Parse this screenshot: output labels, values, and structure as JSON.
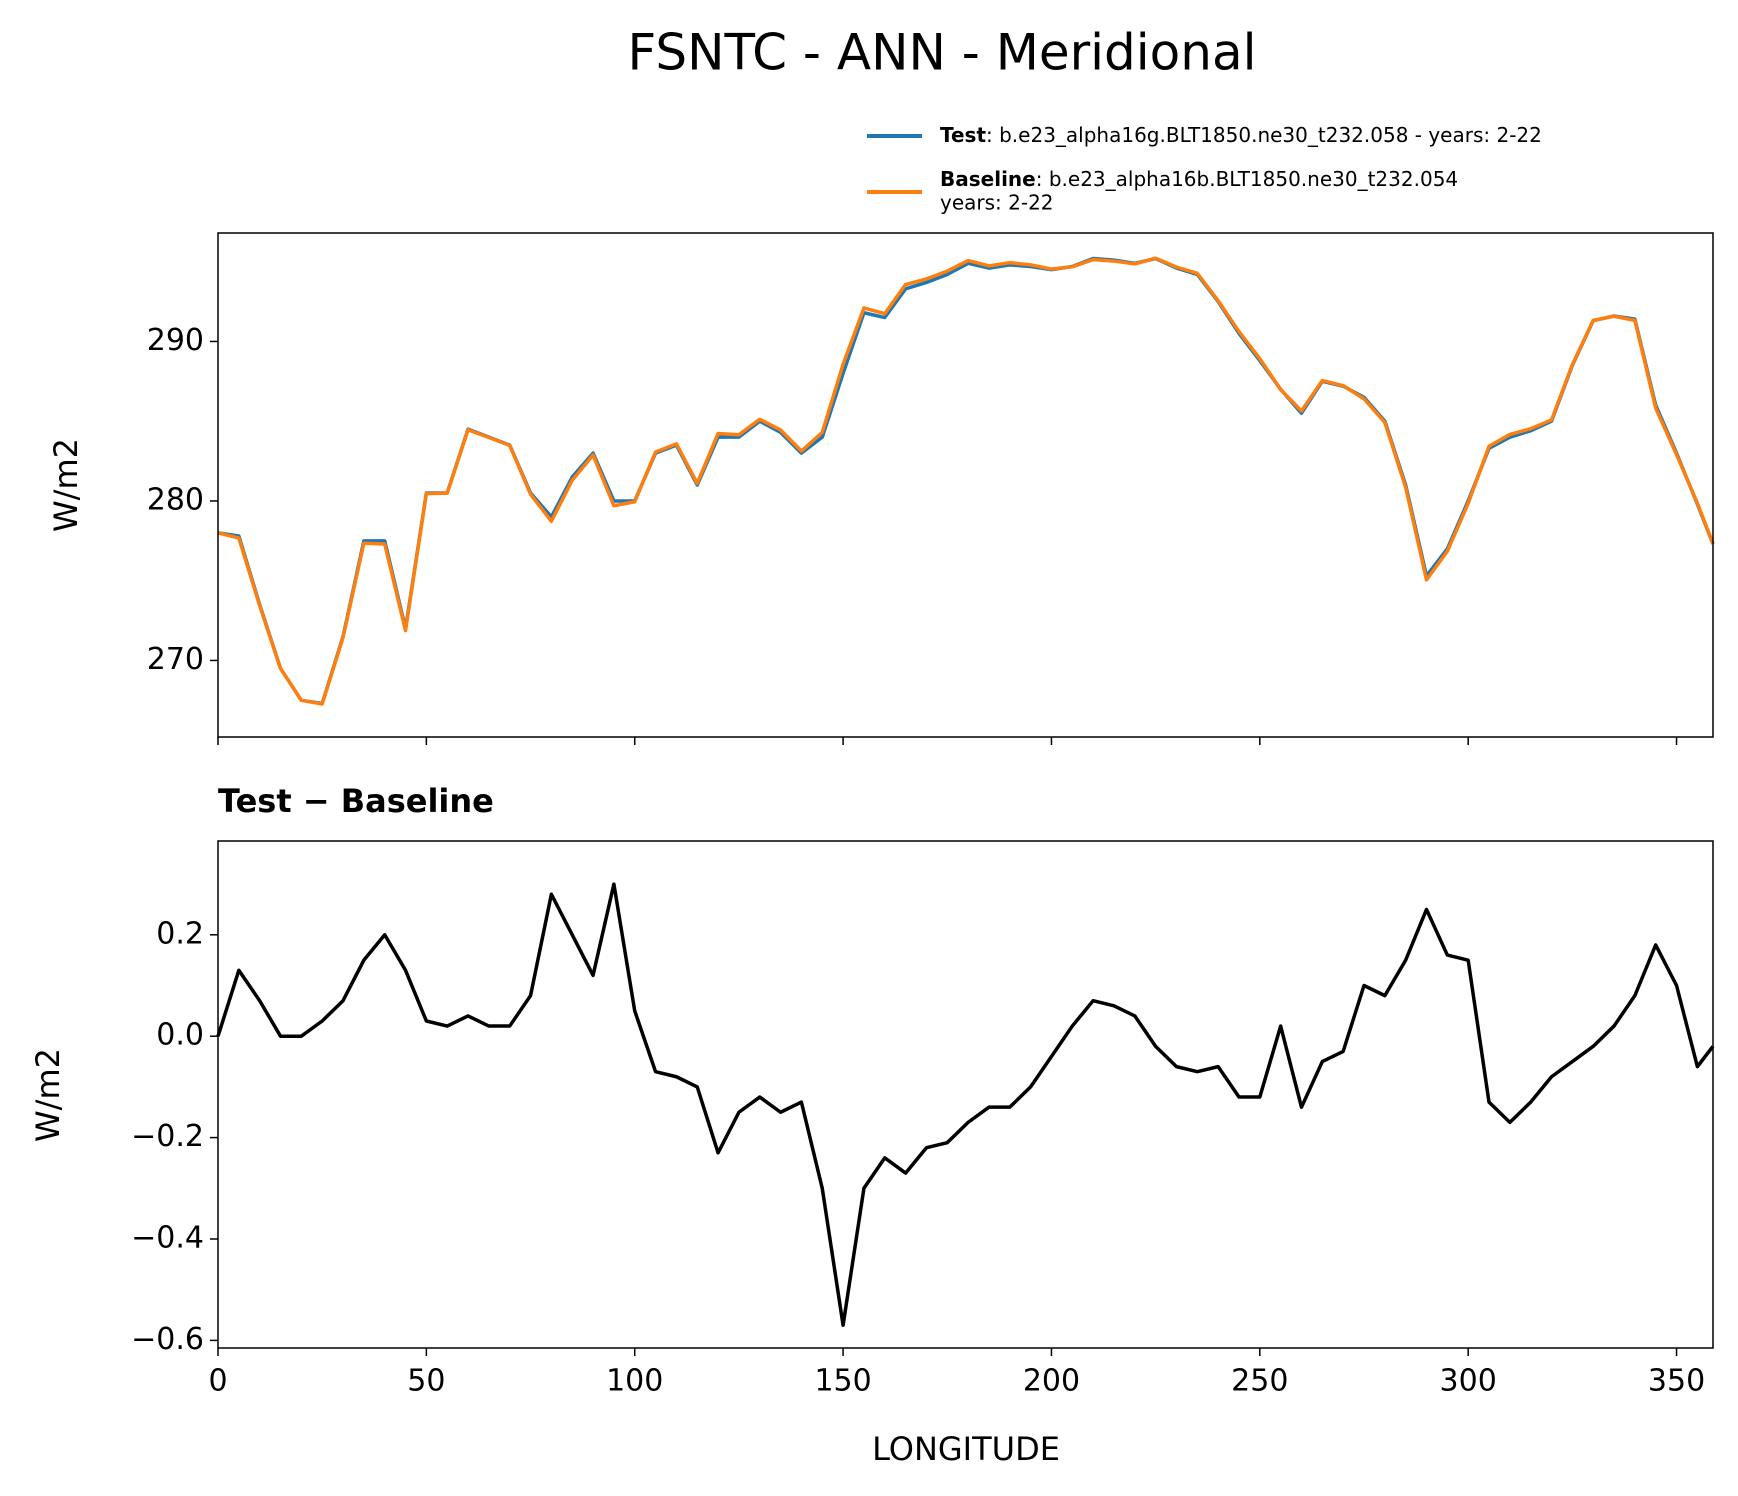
{
  "chart_data": [
    {
      "type": "line",
      "title": "FSNTC - ANN - Meridional",
      "ylabel": "W/m2",
      "x": [
        0,
        5,
        10,
        15,
        20,
        25,
        30,
        35,
        40,
        45,
        50,
        55,
        60,
        65,
        70,
        75,
        80,
        85,
        90,
        95,
        100,
        105,
        110,
        115,
        120,
        125,
        130,
        135,
        140,
        145,
        150,
        155,
        160,
        165,
        170,
        175,
        180,
        185,
        190,
        195,
        200,
        205,
        210,
        215,
        220,
        225,
        230,
        235,
        240,
        245,
        250,
        255,
        260,
        265,
        270,
        275,
        280,
        285,
        290,
        295,
        300,
        305,
        310,
        315,
        320,
        325,
        330,
        335,
        340,
        345,
        350,
        355,
        358.75
      ],
      "series": [
        {
          "name": "Test",
          "detail": [
            ": b.e23_alpha16g.BLT1850.ne30_t232.058 - years: 2-22"
          ],
          "color": "#1f77b4",
          "values": [
            278.0,
            277.8,
            273.5,
            269.5,
            267.5,
            267.3,
            271.5,
            277.5,
            277.5,
            272.0,
            280.5,
            280.5,
            284.5,
            284.0,
            283.5,
            280.5,
            279.0,
            281.5,
            283.0,
            280.0,
            280.0,
            283.0,
            283.5,
            281.0,
            284.0,
            284.0,
            285.0,
            284.3,
            283.0,
            284.0,
            288.0,
            291.8,
            291.5,
            293.3,
            293.7,
            294.2,
            294.9,
            294.6,
            294.8,
            294.7,
            294.5,
            294.7,
            295.2,
            295.1,
            294.9,
            295.2,
            294.6,
            294.2,
            292.5,
            290.5,
            288.8,
            287.0,
            285.5,
            287.5,
            287.2,
            286.5,
            285.0,
            281.0,
            275.3,
            277.0,
            280.0,
            283.3,
            284.0,
            284.4,
            285.0,
            288.5,
            291.3,
            291.6,
            291.4,
            286.0,
            283.0,
            279.8,
            277.3
          ]
        },
        {
          "name": "Baseline",
          "detail": [
            ": b.e23_alpha16b.BLT1850.ne30_t232.054",
            "years: 2-22"
          ],
          "color": "#ff7f0e",
          "values": [
            278.0,
            277.67,
            273.43,
            269.5,
            267.5,
            267.27,
            271.43,
            277.35,
            277.3,
            271.87,
            280.47,
            280.48,
            284.46,
            283.98,
            283.48,
            280.42,
            278.72,
            281.3,
            282.88,
            279.7,
            279.95,
            283.07,
            283.58,
            281.1,
            284.23,
            284.15,
            285.12,
            284.45,
            283.13,
            284.3,
            288.57,
            292.1,
            291.74,
            293.57,
            293.92,
            294.41,
            295.07,
            294.74,
            294.94,
            294.8,
            294.54,
            294.68,
            295.13,
            295.04,
            294.86,
            295.22,
            294.66,
            294.27,
            292.56,
            290.62,
            288.92,
            286.98,
            285.64,
            287.55,
            287.23,
            286.4,
            284.92,
            280.85,
            275.05,
            276.84,
            279.85,
            283.43,
            284.17,
            284.53,
            285.08,
            288.55,
            291.32,
            291.58,
            291.32,
            285.82,
            282.9,
            279.86,
            277.32
          ]
        }
      ],
      "xlim": [
        0,
        358.75
      ],
      "ylim": [
        265.2,
        296.8
      ],
      "yticks": [
        270,
        280,
        290
      ]
    },
    {
      "type": "line",
      "title": "Test − Baseline",
      "xlabel": "LONGITUDE",
      "ylabel": "W/m2",
      "x": [
        0,
        5,
        10,
        15,
        20,
        25,
        30,
        35,
        40,
        45,
        50,
        55,
        60,
        65,
        70,
        75,
        80,
        85,
        90,
        95,
        100,
        105,
        110,
        115,
        120,
        125,
        130,
        135,
        140,
        145,
        150,
        155,
        160,
        165,
        170,
        175,
        180,
        185,
        190,
        195,
        200,
        205,
        210,
        215,
        220,
        225,
        230,
        235,
        240,
        245,
        250,
        255,
        260,
        265,
        270,
        275,
        280,
        285,
        290,
        295,
        300,
        305,
        310,
        315,
        320,
        325,
        330,
        335,
        340,
        345,
        350,
        355,
        358.75
      ],
      "values": [
        0.0,
        0.13,
        0.07,
        0.0,
        0.0,
        0.03,
        0.07,
        0.15,
        0.2,
        0.13,
        0.03,
        0.02,
        0.04,
        0.02,
        0.02,
        0.08,
        0.28,
        0.2,
        0.12,
        0.3,
        0.05,
        -0.07,
        -0.08,
        -0.1,
        -0.23,
        -0.15,
        -0.12,
        -0.15,
        -0.13,
        -0.3,
        -0.57,
        -0.3,
        -0.24,
        -0.27,
        -0.22,
        -0.21,
        -0.17,
        -0.14,
        -0.14,
        -0.1,
        -0.04,
        0.02,
        0.07,
        0.06,
        0.04,
        -0.02,
        -0.06,
        -0.07,
        -0.06,
        -0.12,
        -0.12,
        0.02,
        -0.14,
        -0.05,
        -0.03,
        0.1,
        0.08,
        0.15,
        0.25,
        0.16,
        0.15,
        -0.13,
        -0.17,
        -0.13,
        -0.08,
        -0.05,
        -0.02,
        0.02,
        0.08,
        0.18,
        0.1,
        -0.06,
        -0.02
      ],
      "color": "#000000",
      "xlim": [
        0,
        358.75
      ],
      "ylim": [
        -0.615,
        0.385
      ],
      "xticks": [
        0,
        50,
        100,
        150,
        200,
        250,
        300,
        350
      ],
      "yticks": [
        {
          "value": -0.6,
          "label": "−0.6"
        },
        {
          "value": -0.4,
          "label": "−0.4"
        },
        {
          "value": -0.2,
          "label": "−0.2"
        },
        {
          "value": 0.0,
          "label": "0.0"
        },
        0.2
      ]
    }
  ]
}
